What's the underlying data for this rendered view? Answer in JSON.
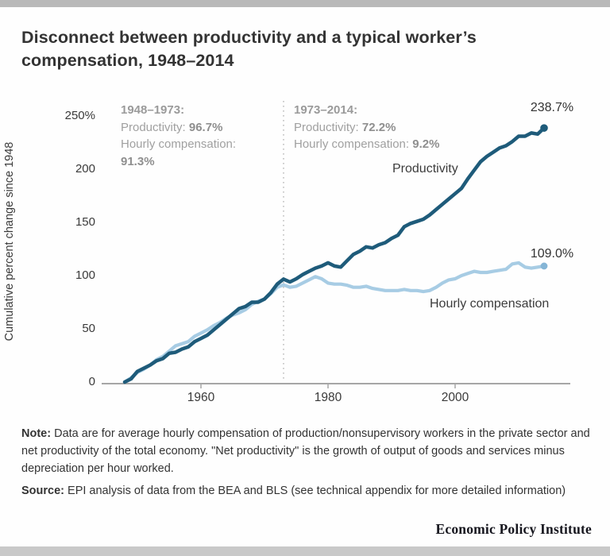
{
  "title": {
    "line1": "Disconnect between productivity and a typical worker’s",
    "line2": "compensation, 1948–2014"
  },
  "annotations": {
    "left": {
      "heading": "1948–1973:",
      "productivity_label": "Productivity: ",
      "productivity_value": "96.7%",
      "compensation_label": "Hourly compensation:",
      "compensation_value": "91.3%"
    },
    "right": {
      "heading": "1973–2014:",
      "productivity_label": "Productivity: ",
      "productivity_value": "72.2%",
      "compensation_label": "Hourly compensation: ",
      "compensation_value": "9.2%"
    }
  },
  "note": {
    "prefix": "Note:",
    "text": " Data are for average hourly compensation of production/nonsupervisory workers in the private sector and net productivity of the total economy. \"Net productivity\" is the growth of output of goods and services minus depreciation per hour worked."
  },
  "source": {
    "prefix": "Source:",
    "text": " EPI analysis of data from the BEA and BLS (see technical appendix for more detailed information)"
  },
  "branding": {
    "wordmark": "Economic Policy Institute"
  },
  "colors": {
    "productivity": "#1e5b7a",
    "compensation": "#a7cce4",
    "compensation_dot": "#85b5d6",
    "axis": "#a6a6a6",
    "reference_line": "#c0c0c0"
  },
  "chart_data": {
    "type": "line",
    "title": "Disconnect between productivity and a typical worker’s compensation, 1948–2014",
    "xlabel": "",
    "ylabel": "Cumulative percent change since 1948",
    "ylim": [
      0,
      250
    ],
    "xlim": [
      1948,
      2014
    ],
    "grid": false,
    "legend_position": "inline-labels",
    "reference_line_x": 1973,
    "x": [
      1948,
      1949,
      1950,
      1951,
      1952,
      1953,
      1954,
      1955,
      1956,
      1957,
      1958,
      1959,
      1960,
      1961,
      1962,
      1963,
      1964,
      1965,
      1966,
      1967,
      1968,
      1969,
      1970,
      1971,
      1972,
      1973,
      1974,
      1975,
      1976,
      1977,
      1978,
      1979,
      1980,
      1981,
      1982,
      1983,
      1984,
      1985,
      1986,
      1987,
      1988,
      1989,
      1990,
      1991,
      1992,
      1993,
      1994,
      1995,
      1996,
      1997,
      1998,
      1999,
      2000,
      2001,
      2002,
      2003,
      2004,
      2005,
      2006,
      2007,
      2008,
      2009,
      2010,
      2011,
      2012,
      2013,
      2014
    ],
    "series": [
      {
        "name": "Hourly compensation",
        "end_label": "109.0%",
        "values": [
          0,
          4,
          9,
          12,
          16,
          21,
          24,
          29,
          34,
          36,
          38,
          43,
          46,
          49,
          53,
          56,
          60,
          63,
          65,
          68,
          73,
          76,
          78,
          83,
          89,
          91.3,
          89,
          90,
          93,
          96,
          99,
          97,
          93,
          92,
          92,
          91,
          89,
          89,
          90,
          88,
          87,
          86,
          86,
          86,
          87,
          86,
          86,
          85,
          86,
          89,
          93,
          96,
          97,
          100,
          102,
          104,
          103,
          103,
          104,
          105,
          106,
          111,
          112,
          108,
          107,
          108,
          109
        ]
      },
      {
        "name": "Productivity",
        "end_label": "238.7%",
        "values": [
          0,
          3,
          10,
          13,
          16,
          20,
          22,
          27,
          28,
          31,
          33,
          38,
          41,
          44,
          49,
          54,
          59,
          64,
          69,
          71,
          75,
          75,
          78,
          84,
          92,
          96.7,
          94,
          97,
          101,
          104,
          107,
          109,
          112,
          109,
          108,
          114,
          120,
          123,
          127,
          126,
          129,
          131,
          135,
          138,
          146,
          149,
          151,
          153,
          157,
          162,
          167,
          172,
          177,
          182,
          191,
          199,
          207,
          212,
          216,
          220,
          222,
          226,
          231,
          231,
          234,
          233,
          238.7
        ]
      }
    ],
    "yticks": [
      {
        "value": 0,
        "label": "0"
      },
      {
        "value": 50,
        "label": "50"
      },
      {
        "value": 100,
        "label": "100"
      },
      {
        "value": 150,
        "label": "150"
      },
      {
        "value": 200,
        "label": "200"
      },
      {
        "value": 250,
        "label": "250%"
      }
    ],
    "xticks": [
      {
        "year": 1960,
        "label": "1960"
      },
      {
        "year": 1980,
        "label": "1980"
      },
      {
        "year": 2000,
        "label": "2000"
      }
    ]
  }
}
